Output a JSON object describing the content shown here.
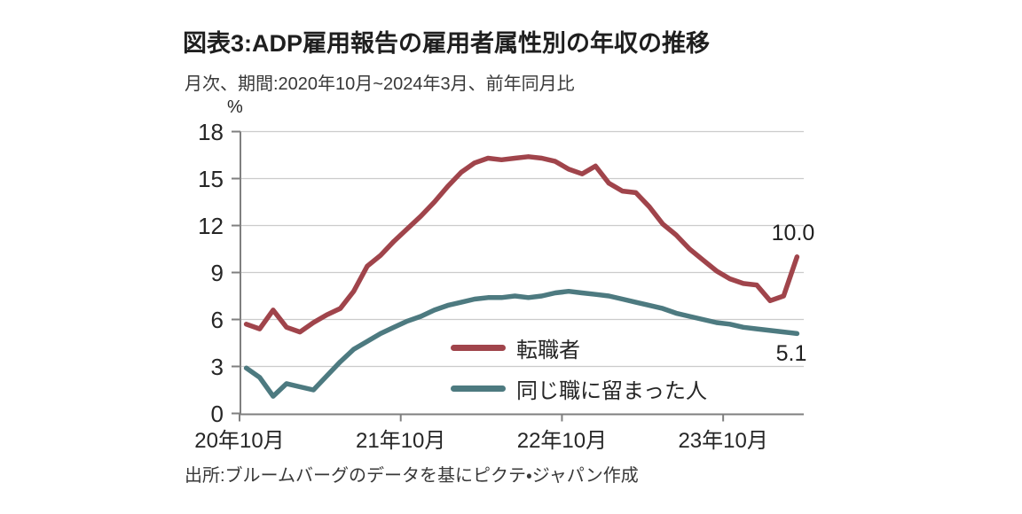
{
  "header": {
    "title": "図表3:ADP雇用報告の雇用者属性別の年収の推移",
    "subtitle": "月次、期間:2020年10月~2024年3月、前年同月比"
  },
  "style": {
    "background": "#ffffff",
    "grid_color": "#cbcbcb",
    "axis_color": "#7f7f7f",
    "text_color": "#262626",
    "title_color": "#1f1f1f"
  },
  "chart_data": {
    "type": "line",
    "title": "図表3:ADP雇用報告の雇用者属性別の年収の推移",
    "subtitle": "月次、期間:2020年10月~2024年3月、前年同月比",
    "unit_label": "%",
    "grid": true,
    "legend_position": "inside-bottom-center",
    "ylim": [
      0,
      18
    ],
    "y_ticks": [
      0,
      3,
      6,
      9,
      12,
      15,
      18
    ],
    "x_tick_labels": [
      "20年10月",
      "21年10月",
      "22年10月",
      "23年10月"
    ],
    "months": [
      "2020-10",
      "2020-11",
      "2020-12",
      "2021-01",
      "2021-02",
      "2021-03",
      "2021-04",
      "2021-05",
      "2021-06",
      "2021-07",
      "2021-08",
      "2021-09",
      "2021-10",
      "2021-11",
      "2021-12",
      "2022-01",
      "2022-02",
      "2022-03",
      "2022-04",
      "2022-05",
      "2022-06",
      "2022-07",
      "2022-08",
      "2022-09",
      "2022-10",
      "2022-11",
      "2022-12",
      "2023-01",
      "2023-02",
      "2023-03",
      "2023-04",
      "2023-05",
      "2023-06",
      "2023-07",
      "2023-08",
      "2023-09",
      "2023-10",
      "2023-11",
      "2023-12",
      "2024-01",
      "2024-02",
      "2024-03"
    ],
    "series": [
      {
        "name": "転職者",
        "color": "#a0444b",
        "values": [
          5.7,
          5.4,
          6.6,
          5.5,
          5.2,
          5.8,
          6.3,
          6.7,
          7.8,
          9.4,
          10.1,
          11.0,
          11.8,
          12.6,
          13.5,
          14.5,
          15.4,
          16.0,
          16.3,
          16.2,
          16.3,
          16.4,
          16.3,
          16.1,
          15.6,
          15.3,
          15.8,
          14.7,
          14.2,
          14.1,
          13.2,
          12.1,
          11.4,
          10.5,
          9.8,
          9.1,
          8.6,
          8.3,
          8.2,
          7.2,
          7.5,
          10.0
        ]
      },
      {
        "name": "同じ職に留まった人",
        "color": "#4d7a80",
        "values": [
          2.9,
          2.3,
          1.1,
          1.9,
          1.7,
          1.5,
          2.4,
          3.3,
          4.1,
          4.6,
          5.1,
          5.5,
          5.9,
          6.2,
          6.6,
          6.9,
          7.1,
          7.3,
          7.4,
          7.4,
          7.5,
          7.4,
          7.5,
          7.7,
          7.8,
          7.7,
          7.6,
          7.5,
          7.3,
          7.1,
          6.9,
          6.7,
          6.4,
          6.2,
          6.0,
          5.8,
          5.7,
          5.5,
          5.4,
          5.3,
          5.2,
          5.1
        ]
      }
    ],
    "end_labels": {
      "job_changers": "10.0",
      "job_stayers": "5.1"
    }
  },
  "footer": {
    "source": "出所:ブルームバーグのデータを基にピクテ・ジャパン作成"
  }
}
